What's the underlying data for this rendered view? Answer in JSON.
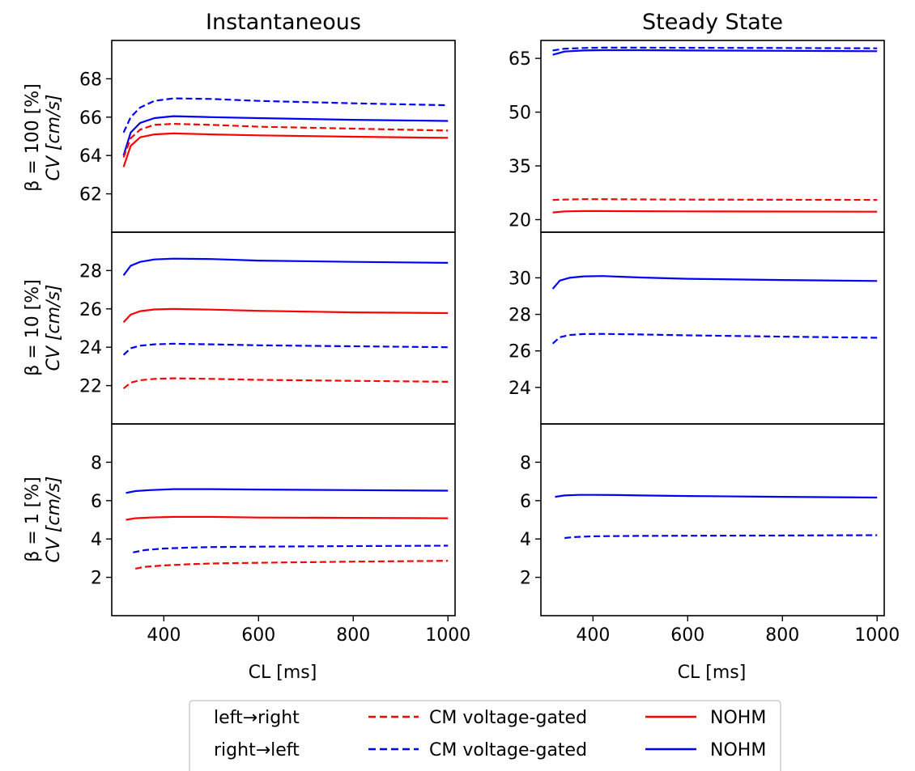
{
  "columns": [
    "Instantaneous",
    "Steady State"
  ],
  "row_labels": [
    {
      "beta": "β = 100 [%]",
      "cv": "CV [cm/s]"
    },
    {
      "beta": "β = 10 [%]",
      "cv": "CV [cm/s]"
    },
    {
      "beta": "β = 1 [%]",
      "cv": "CV [cm/s]"
    }
  ],
  "xlabel": "CL [ms]",
  "legend": {
    "directions": [
      "left→right",
      "right→left"
    ],
    "entries": [
      {
        "label": "CM voltage-gated",
        "color": "#ff0000",
        "dash": true
      },
      {
        "label": "NOHM",
        "color": "#ff0000",
        "dash": false
      },
      {
        "label": "CM voltage-gated",
        "color": "#0000ff",
        "dash": true
      },
      {
        "label": "NOHM",
        "color": "#0000ff",
        "dash": false
      }
    ]
  },
  "colors": {
    "red": "#ff0000",
    "blue": "#0000ff"
  },
  "chart_data": [
    {
      "type": "line",
      "column": "Instantaneous",
      "row": "β = 100 [%]",
      "xlim": [
        290,
        1015
      ],
      "ylim": [
        60,
        70
      ],
      "xticks": [
        400,
        600,
        800,
        1000
      ],
      "yticks": [
        62,
        64,
        66,
        68
      ],
      "series": [
        {
          "color": "blue",
          "dash": true,
          "x": [
            315,
            330,
            350,
            380,
            420,
            500,
            600,
            800,
            1000
          ],
          "y": [
            65.2,
            66.0,
            66.5,
            66.85,
            66.98,
            66.95,
            66.85,
            66.72,
            66.62
          ]
        },
        {
          "color": "blue",
          "dash": false,
          "x": [
            315,
            330,
            350,
            380,
            420,
            500,
            600,
            800,
            1000
          ],
          "y": [
            64.0,
            65.2,
            65.7,
            65.95,
            66.05,
            66.0,
            65.95,
            65.86,
            65.8
          ]
        },
        {
          "color": "red",
          "dash": true,
          "x": [
            315,
            330,
            350,
            380,
            420,
            500,
            600,
            800,
            1000
          ],
          "y": [
            63.9,
            64.9,
            65.35,
            65.6,
            65.65,
            65.6,
            65.5,
            65.4,
            65.3
          ]
        },
        {
          "color": "red",
          "dash": false,
          "x": [
            315,
            330,
            350,
            380,
            420,
            500,
            600,
            800,
            1000
          ],
          "y": [
            63.4,
            64.5,
            64.95,
            65.1,
            65.15,
            65.1,
            65.05,
            64.98,
            64.92
          ]
        }
      ]
    },
    {
      "type": "line",
      "column": "Steady State",
      "row": "β = 100 [%]",
      "xlim": [
        290,
        1015
      ],
      "ylim": [
        16.5,
        70
      ],
      "xticks": [
        400,
        600,
        800,
        1000
      ],
      "yticks": [
        20,
        35,
        50,
        65
      ],
      "series": [
        {
          "color": "blue",
          "dash": true,
          "x": [
            315,
            340,
            380,
            420,
            500,
            600,
            800,
            1000
          ],
          "y": [
            67.2,
            67.7,
            67.9,
            68.0,
            68.0,
            67.95,
            67.9,
            67.8
          ]
        },
        {
          "color": "blue",
          "dash": false,
          "x": [
            315,
            340,
            380,
            420,
            500,
            600,
            800,
            1000
          ],
          "y": [
            66.0,
            66.9,
            67.2,
            67.3,
            67.3,
            67.2,
            67.1,
            67.0
          ]
        },
        {
          "color": "red",
          "dash": true,
          "x": [
            315,
            340,
            380,
            420,
            500,
            600,
            800,
            1000
          ],
          "y": [
            25.5,
            25.6,
            25.7,
            25.7,
            25.65,
            25.6,
            25.55,
            25.5
          ]
        },
        {
          "color": "red",
          "dash": false,
          "x": [
            315,
            340,
            380,
            420,
            500,
            600,
            800,
            1000
          ],
          "y": [
            22.0,
            22.3,
            22.4,
            22.4,
            22.35,
            22.3,
            22.25,
            22.2
          ]
        }
      ]
    },
    {
      "type": "line",
      "column": "Instantaneous",
      "row": "β = 10 [%]",
      "xlim": [
        290,
        1015
      ],
      "ylim": [
        20,
        30
      ],
      "xticks": [
        400,
        600,
        800,
        1000
      ],
      "yticks": [
        22,
        24,
        26,
        28
      ],
      "series": [
        {
          "color": "blue",
          "dash": false,
          "x": [
            315,
            330,
            350,
            380,
            420,
            500,
            600,
            800,
            1000
          ],
          "y": [
            27.75,
            28.25,
            28.45,
            28.58,
            28.62,
            28.6,
            28.52,
            28.45,
            28.4
          ]
        },
        {
          "color": "red",
          "dash": false,
          "x": [
            315,
            330,
            350,
            380,
            420,
            500,
            600,
            800,
            1000
          ],
          "y": [
            25.3,
            25.7,
            25.88,
            25.97,
            26.0,
            25.96,
            25.9,
            25.82,
            25.78
          ]
        },
        {
          "color": "blue",
          "dash": true,
          "x": [
            315,
            330,
            350,
            380,
            420,
            500,
            600,
            800,
            1000
          ],
          "y": [
            23.6,
            23.95,
            24.08,
            24.15,
            24.18,
            24.15,
            24.1,
            24.05,
            24.0
          ]
        },
        {
          "color": "red",
          "dash": true,
          "x": [
            315,
            330,
            350,
            380,
            420,
            500,
            600,
            800,
            1000
          ],
          "y": [
            21.85,
            22.15,
            22.28,
            22.35,
            22.38,
            22.35,
            22.3,
            22.25,
            22.2
          ]
        }
      ]
    },
    {
      "type": "line",
      "column": "Steady State",
      "row": "β = 10 [%]",
      "xlim": [
        290,
        1015
      ],
      "ylim": [
        22,
        32.5
      ],
      "xticks": [
        400,
        600,
        800,
        1000
      ],
      "yticks": [
        24,
        26,
        28,
        30
      ],
      "series": [
        {
          "color": "blue",
          "dash": false,
          "x": [
            315,
            330,
            350,
            380,
            420,
            500,
            600,
            800,
            1000
          ],
          "y": [
            29.4,
            29.85,
            30.0,
            30.08,
            30.1,
            30.02,
            29.95,
            29.88,
            29.83
          ]
        },
        {
          "color": "blue",
          "dash": true,
          "x": [
            315,
            330,
            350,
            380,
            420,
            500,
            600,
            800,
            1000
          ],
          "y": [
            26.4,
            26.75,
            26.87,
            26.92,
            26.93,
            26.9,
            26.85,
            26.78,
            26.72
          ]
        }
      ]
    },
    {
      "type": "line",
      "column": "Instantaneous",
      "row": "β = 1 [%]",
      "xlim": [
        290,
        1015
      ],
      "ylim": [
        0,
        10
      ],
      "xticks": [
        400,
        600,
        800,
        1000
      ],
      "yticks": [
        2,
        4,
        6,
        8
      ],
      "series": [
        {
          "color": "blue",
          "dash": false,
          "x": [
            320,
            340,
            370,
            420,
            500,
            600,
            800,
            1000
          ],
          "y": [
            6.4,
            6.5,
            6.55,
            6.6,
            6.6,
            6.58,
            6.55,
            6.52
          ]
        },
        {
          "color": "red",
          "dash": false,
          "x": [
            320,
            340,
            370,
            420,
            500,
            600,
            800,
            1000
          ],
          "y": [
            5.0,
            5.08,
            5.12,
            5.15,
            5.15,
            5.12,
            5.1,
            5.08
          ]
        },
        {
          "color": "blue",
          "dash": true,
          "x": [
            335,
            360,
            400,
            450,
            500,
            600,
            800,
            1000
          ],
          "y": [
            3.3,
            3.42,
            3.5,
            3.55,
            3.58,
            3.6,
            3.63,
            3.65
          ]
        },
        {
          "color": "red",
          "dash": true,
          "x": [
            340,
            360,
            400,
            450,
            500,
            600,
            800,
            1000
          ],
          "y": [
            2.45,
            2.55,
            2.62,
            2.68,
            2.72,
            2.76,
            2.82,
            2.86
          ]
        }
      ]
    },
    {
      "type": "line",
      "column": "Steady State",
      "row": "β = 1 [%]",
      "xlim": [
        290,
        1015
      ],
      "ylim": [
        0,
        10
      ],
      "xticks": [
        400,
        600,
        800,
        1000
      ],
      "yticks": [
        2,
        4,
        6,
        8
      ],
      "series": [
        {
          "color": "blue",
          "dash": false,
          "x": [
            320,
            340,
            370,
            400,
            450,
            500,
            600,
            800,
            1000
          ],
          "y": [
            6.2,
            6.27,
            6.3,
            6.3,
            6.29,
            6.27,
            6.24,
            6.2,
            6.16
          ]
        },
        {
          "color": "blue",
          "dash": true,
          "x": [
            340,
            360,
            400,
            450,
            500,
            600,
            800,
            1000
          ],
          "y": [
            4.05,
            4.1,
            4.14,
            4.15,
            4.16,
            4.17,
            4.18,
            4.2
          ]
        }
      ]
    }
  ]
}
